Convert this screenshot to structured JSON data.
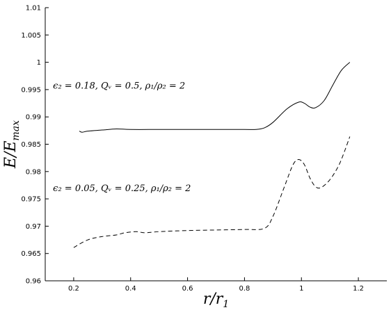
{
  "chart_data": {
    "type": "line",
    "xlabel": "r/r",
    "xlabel_sub": "1",
    "ylabel": "E/E",
    "ylabel_sub": "max",
    "xlim": [
      0.1,
      1.3
    ],
    "ylim": [
      0.96,
      1.01
    ],
    "xticks": [
      0.2,
      0.4,
      0.6,
      0.8,
      1,
      1.2
    ],
    "xtick_labels": [
      "0.2",
      "0.4",
      "0.6",
      "0.8",
      "1",
      "1.2"
    ],
    "yticks": [
      0.96,
      0.965,
      0.97,
      0.975,
      0.98,
      0.985,
      0.99,
      0.995,
      1,
      1.005,
      1.01
    ],
    "ytick_labels": [
      "0.96",
      "0.965",
      "0.97",
      "0.975",
      "0.98",
      "0.985",
      "0.99",
      "0.995",
      "1",
      "1.005",
      "1.01"
    ],
    "grid": false,
    "legend": "none",
    "series": [
      {
        "line_style": "solid",
        "color": "#000000",
        "annotation": "ϵ₂ = 0.18, Qᵥ = 0.5, ρ₁/ρ₂ = 2",
        "x": [
          0.22,
          0.23,
          0.25,
          0.3,
          0.35,
          0.4,
          0.5,
          0.6,
          0.7,
          0.8,
          0.84,
          0.87,
          0.9,
          0.95,
          0.99,
          1.01,
          1.03,
          1.05,
          1.08,
          1.11,
          1.14,
          1.17
        ],
        "y": [
          0.9874,
          0.9872,
          0.9874,
          0.9876,
          0.9878,
          0.9877,
          0.9877,
          0.9877,
          0.9877,
          0.9877,
          0.9877,
          0.988,
          0.989,
          0.9915,
          0.9927,
          0.9925,
          0.9918,
          0.9917,
          0.993,
          0.9958,
          0.9985,
          1.0
        ]
      },
      {
        "line_style": "dashed",
        "color": "#000000",
        "annotation": "ϵ₂ = 0.05, Qᵥ = 0.25, ρ₁/ρ₂ = 2",
        "x": [
          0.2,
          0.25,
          0.3,
          0.35,
          0.38,
          0.42,
          0.45,
          0.5,
          0.6,
          0.7,
          0.8,
          0.87,
          0.9,
          0.94,
          0.97,
          0.99,
          1.01,
          1.03,
          1.05,
          1.07,
          1.1,
          1.13,
          1.15,
          1.17
        ],
        "y": [
          0.9661,
          0.9675,
          0.9681,
          0.9684,
          0.9688,
          0.969,
          0.9688,
          0.969,
          0.9692,
          0.9693,
          0.9694,
          0.9696,
          0.9718,
          0.9772,
          0.9812,
          0.9822,
          0.9813,
          0.9788,
          0.9772,
          0.9771,
          0.9785,
          0.981,
          0.9835,
          0.9864
        ]
      }
    ]
  }
}
